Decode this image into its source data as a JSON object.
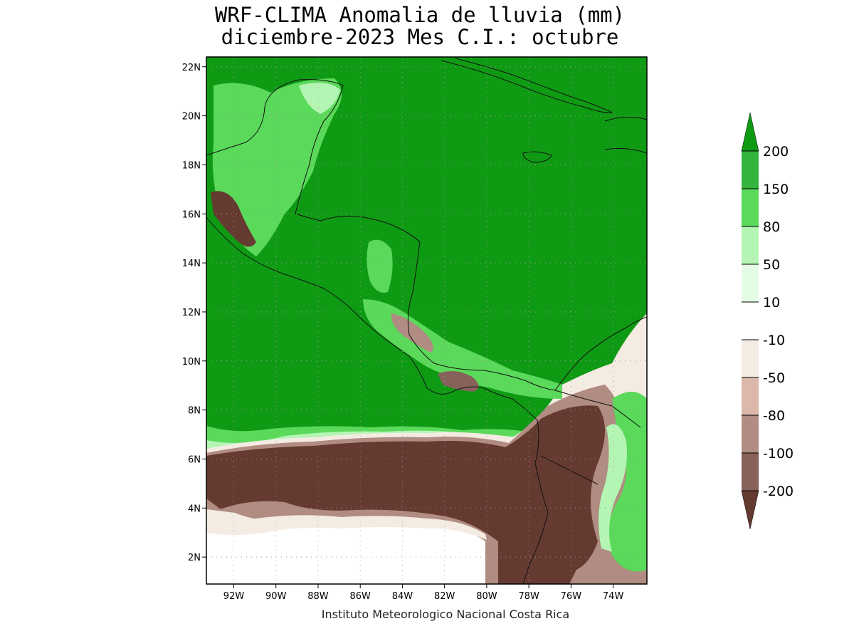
{
  "title": {
    "line1": "WRF-CLIMA Anomalia de lluvia (mm)",
    "line2": "diciembre-2023 Mes C.I.: octubre"
  },
  "footer": "Instituto Meteorologico Nacional Costa Rica",
  "axes": {
    "lon_range": [
      -93.3,
      -72.4
    ],
    "lat_range": [
      0.9,
      22.4
    ],
    "lon_ticks": [
      {
        "value": -92,
        "label": "92W"
      },
      {
        "value": -90,
        "label": "90W"
      },
      {
        "value": -88,
        "label": "88W"
      },
      {
        "value": -86,
        "label": "86W"
      },
      {
        "value": -84,
        "label": "84W"
      },
      {
        "value": -82,
        "label": "82W"
      },
      {
        "value": -80,
        "label": "80W"
      },
      {
        "value": -78,
        "label": "78W"
      },
      {
        "value": -76,
        "label": "76W"
      },
      {
        "value": -74,
        "label": "74W"
      }
    ],
    "lat_ticks": [
      {
        "value": 2,
        "label": "2N"
      },
      {
        "value": 4,
        "label": "4N"
      },
      {
        "value": 6,
        "label": "6N"
      },
      {
        "value": 8,
        "label": "8N"
      },
      {
        "value": 10,
        "label": "10N"
      },
      {
        "value": 12,
        "label": "12N"
      },
      {
        "value": 14,
        "label": "14N"
      },
      {
        "value": 16,
        "label": "16N"
      },
      {
        "value": 18,
        "label": "18N"
      },
      {
        "value": 20,
        "label": "20N"
      },
      {
        "value": 22,
        "label": "22N"
      }
    ],
    "grid": "dotted"
  },
  "colorbar": {
    "labels": [
      "200",
      "150",
      "80",
      "50",
      "10",
      "-10",
      "-50",
      "-80",
      "-100",
      "-200"
    ],
    "colors": [
      "#33b43c",
      "#5ad95a",
      "#b4f5b4",
      "#e4fbe4",
      "#ffffff",
      "#f4ebe2",
      "#dcb8aa",
      "#b08c82",
      "#87625a"
    ],
    "top_color": "#0f9a14",
    "bottom_color": "#653a31"
  },
  "map_colors": {
    "wet_strong": "#0f9a14",
    "wet_mid": "#33b43c",
    "wet_light": "#5ad95a",
    "wet_pale": "#b4f5b4",
    "neutral": "#ffffff",
    "dry_light": "#f4ebe2",
    "dry_mid": "#b08c82",
    "dry_strong": "#653a31"
  }
}
